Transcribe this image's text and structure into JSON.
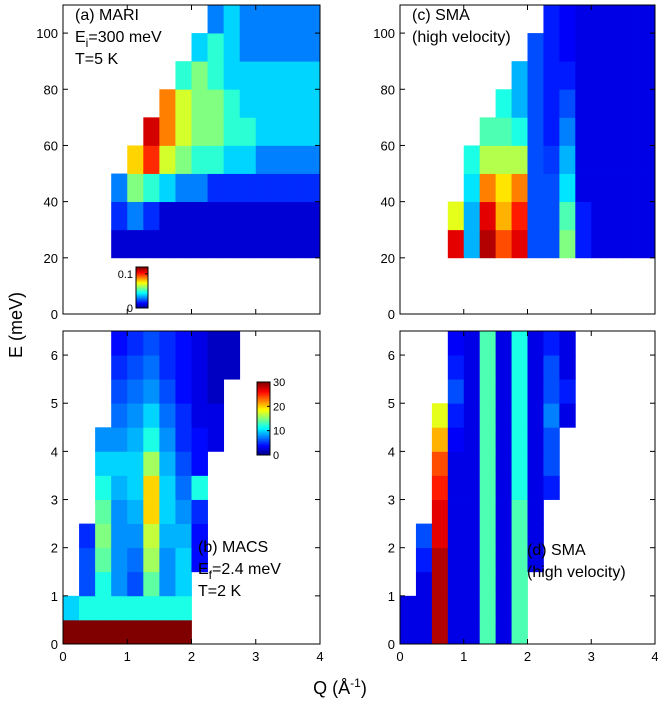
{
  "figure": {
    "ylabel": "E (meV)",
    "xlabel": [
      "Q (Å",
      "-1",
      ")"
    ]
  },
  "chart_data": [
    {
      "type": "heatmap",
      "colormap": "jet",
      "label": [
        "(a) MARI",
        [
          "E",
          "i",
          "=300 meV"
        ],
        "T=5 K"
      ],
      "xlim": [
        0,
        4
      ],
      "xticks": [
        0,
        1,
        2,
        3,
        4
      ],
      "show_xtick_labels": false,
      "ylim": [
        0,
        110
      ],
      "yticks": [
        0,
        20,
        40,
        60,
        80,
        100
      ],
      "clim": [
        0,
        0.12
      ],
      "colorbar": {
        "ticks": [
          0,
          0.1
        ]
      },
      "x_edges": [
        0,
        0.25,
        0.5,
        0.75,
        1,
        1.25,
        1.5,
        1.75,
        2,
        2.25,
        2.5,
        2.75,
        3,
        3.25,
        3.5,
        3.75,
        4
      ],
      "y_edges": [
        20,
        30,
        40,
        50,
        60,
        70,
        80,
        90,
        100,
        110
      ],
      "z": [
        [
          null,
          null,
          null,
          0.01,
          0.01,
          0.01,
          0.01,
          0.01,
          0.01,
          0.01,
          0.01,
          0.01,
          0.01,
          0.01,
          0.01,
          0.01
        ],
        [
          null,
          null,
          null,
          0.02,
          0.03,
          0.02,
          0.01,
          0.01,
          0.01,
          0.01,
          0.01,
          0.01,
          0.01,
          0.01,
          0.01,
          0.01
        ],
        [
          null,
          null,
          null,
          0.03,
          0.06,
          0.05,
          0.04,
          0.03,
          0.03,
          0.02,
          0.02,
          0.02,
          0.02,
          0.02,
          0.02,
          0.02
        ],
        [
          null,
          null,
          null,
          null,
          0.08,
          0.1,
          0.07,
          0.06,
          0.05,
          0.05,
          0.04,
          0.04,
          0.03,
          0.03,
          0.03,
          0.03
        ],
        [
          null,
          null,
          null,
          null,
          null,
          0.11,
          0.09,
          0.07,
          0.06,
          0.06,
          0.05,
          0.05,
          0.04,
          0.04,
          0.04,
          0.04
        ],
        [
          null,
          null,
          null,
          null,
          null,
          null,
          0.09,
          0.07,
          0.06,
          0.06,
          0.05,
          0.04,
          0.04,
          0.04,
          0.04,
          0.04
        ],
        [
          null,
          null,
          null,
          null,
          null,
          null,
          null,
          0.05,
          0.06,
          0.05,
          0.04,
          0.04,
          0.04,
          0.04,
          0.04,
          0.04
        ],
        [
          null,
          null,
          null,
          null,
          null,
          null,
          null,
          null,
          0.04,
          0.05,
          0.04,
          0.03,
          0.03,
          0.03,
          0.03,
          0.03
        ],
        [
          null,
          null,
          null,
          null,
          null,
          null,
          null,
          null,
          null,
          0.03,
          0.04,
          0.03,
          0.03,
          0.03,
          0.03,
          0.03
        ]
      ]
    },
    {
      "type": "heatmap",
      "colormap": "jet",
      "label": [
        "(b) MACS",
        [
          "E",
          "f",
          "=2.4 meV"
        ],
        "T=2 K"
      ],
      "xlim": [
        0,
        4
      ],
      "xticks": [
        0,
        1,
        2,
        3,
        4
      ],
      "show_xtick_labels": true,
      "ylim": [
        0,
        6.5
      ],
      "yticks": [
        0,
        1,
        2,
        3,
        4,
        5,
        6
      ],
      "clim": [
        0,
        30
      ],
      "colorbar": {
        "ticks": [
          0,
          10,
          20,
          30
        ]
      },
      "x_edges": [
        0,
        0.25,
        0.5,
        0.75,
        1,
        1.25,
        1.5,
        1.75,
        2,
        2.25,
        2.5,
        2.75,
        3,
        3.25,
        3.5,
        3.75,
        4
      ],
      "y_edges": [
        0,
        0.5,
        1,
        1.5,
        2,
        2.5,
        3,
        3.5,
        4,
        4.5,
        5,
        5.5,
        6,
        6.5
      ],
      "z": [
        [
          30,
          30,
          30,
          30,
          30,
          30,
          30,
          30,
          null,
          null,
          null,
          null,
          null,
          null,
          null,
          null
        ],
        [
          10,
          12,
          12,
          12,
          12,
          12,
          12,
          12,
          null,
          null,
          null,
          null,
          null,
          null,
          null,
          null
        ],
        [
          null,
          6,
          12,
          8,
          6,
          14,
          8,
          10,
          null,
          null,
          null,
          null,
          null,
          null,
          null,
          null
        ],
        [
          null,
          6,
          14,
          8,
          7,
          16,
          8,
          10,
          4,
          null,
          null,
          null,
          null,
          null,
          null,
          null
        ],
        [
          null,
          5,
          15,
          8,
          8,
          17,
          9,
          9,
          4,
          null,
          null,
          null,
          null,
          null,
          null,
          null
        ],
        [
          null,
          null,
          14,
          8,
          9,
          20,
          10,
          8,
          5,
          null,
          null,
          null,
          null,
          null,
          null,
          null
        ],
        [
          null,
          null,
          12,
          9,
          10,
          20,
          10,
          7,
          12,
          null,
          null,
          null,
          null,
          null,
          null,
          null
        ],
        [
          null,
          null,
          10,
          10,
          10,
          16,
          9,
          6,
          4,
          null,
          null,
          null,
          null,
          null,
          null,
          null
        ],
        [
          null,
          null,
          8,
          8,
          9,
          12,
          8,
          5,
          4,
          3,
          null,
          null,
          null,
          null,
          null,
          null
        ],
        [
          null,
          null,
          null,
          7,
          8,
          10,
          7,
          5,
          3,
          3,
          null,
          null,
          null,
          null,
          null,
          null
        ],
        [
          null,
          null,
          null,
          6,
          7,
          8,
          6,
          4,
          3,
          2,
          null,
          null,
          null,
          null,
          null,
          null
        ],
        [
          null,
          null,
          null,
          5,
          6,
          7,
          5,
          4,
          3,
          2,
          2,
          null,
          null,
          null,
          null,
          null
        ],
        [
          null,
          null,
          null,
          4,
          5,
          6,
          5,
          4,
          3,
          2,
          2,
          null,
          null,
          null,
          null,
          null
        ]
      ]
    },
    {
      "type": "heatmap",
      "colormap": "jet",
      "label": [
        "(c) SMA",
        "(high velocity)"
      ],
      "xlim": [
        0,
        4
      ],
      "xticks": [
        0,
        1,
        2,
        3,
        4
      ],
      "show_xtick_labels": false,
      "ylim": [
        0,
        110
      ],
      "yticks": [
        0,
        20,
        40,
        60,
        80,
        100
      ],
      "clim": [
        0,
        1
      ],
      "x_edges": [
        0,
        0.25,
        0.5,
        0.75,
        1,
        1.25,
        1.5,
        1.75,
        2,
        2.25,
        2.5,
        2.75,
        3,
        3.25,
        3.5,
        3.75,
        4
      ],
      "y_edges": [
        20,
        30,
        40,
        50,
        60,
        70,
        80,
        90,
        100,
        110
      ],
      "z": [
        [
          null,
          null,
          null,
          0.9,
          0.3,
          0.95,
          0.8,
          0.9,
          0.2,
          0.2,
          0.5,
          0.15,
          0.1,
          0.1,
          0.1,
          0.1
        ],
        [
          null,
          null,
          null,
          0.6,
          0.3,
          0.9,
          0.7,
          0.85,
          0.2,
          0.2,
          0.45,
          0.15,
          0.1,
          0.1,
          0.1,
          0.1
        ],
        [
          null,
          null,
          null,
          null,
          0.35,
          0.75,
          0.65,
          0.75,
          0.2,
          0.2,
          0.35,
          0.1,
          0.1,
          0.1,
          0.1,
          0.1
        ],
        [
          null,
          null,
          null,
          null,
          0.4,
          0.55,
          0.55,
          0.55,
          0.2,
          0.18,
          0.3,
          0.1,
          0.1,
          0.1,
          0.1,
          0.1
        ],
        [
          null,
          null,
          null,
          null,
          null,
          0.45,
          0.45,
          0.4,
          0.2,
          0.15,
          0.25,
          0.1,
          0.1,
          0.1,
          0.1,
          0.1
        ],
        [
          null,
          null,
          null,
          null,
          null,
          null,
          0.4,
          0.3,
          0.2,
          0.15,
          0.2,
          0.1,
          0.1,
          0.1,
          0.1,
          0.1
        ],
        [
          null,
          null,
          null,
          null,
          null,
          null,
          null,
          0.3,
          0.2,
          0.15,
          0.15,
          0.1,
          0.1,
          0.1,
          0.1,
          0.1
        ],
        [
          null,
          null,
          null,
          null,
          null,
          null,
          null,
          null,
          0.2,
          0.15,
          0.12,
          0.1,
          0.1,
          0.1,
          0.1,
          0.1
        ],
        [
          null,
          null,
          null,
          null,
          null,
          null,
          null,
          null,
          null,
          0.15,
          0.12,
          0.1,
          0.1,
          0.1,
          0.1,
          0.1
        ]
      ]
    },
    {
      "type": "heatmap",
      "colormap": "jet",
      "label": [
        "(d) SMA",
        "(high velocity)"
      ],
      "xlim": [
        0,
        4
      ],
      "xticks": [
        0,
        1,
        2,
        3,
        4
      ],
      "show_xtick_labels": true,
      "ylim": [
        0,
        6.5
      ],
      "yticks": [
        0,
        1,
        2,
        3,
        4,
        5,
        6
      ],
      "clim": [
        0,
        1
      ],
      "x_edges": [
        0,
        0.25,
        0.5,
        0.75,
        1,
        1.25,
        1.5,
        1.75,
        2,
        2.25,
        2.5,
        2.75,
        3,
        3.25,
        3.5,
        3.75,
        4
      ],
      "y_edges": [
        0,
        0.5,
        1,
        1.5,
        2,
        2.5,
        3,
        3.5,
        4,
        4.5,
        5,
        5.5,
        6,
        6.5
      ],
      "z": [
        [
          0.1,
          0.1,
          0.95,
          0.1,
          0.1,
          0.45,
          0.1,
          0.45,
          null,
          null,
          null,
          null,
          null,
          null,
          null,
          null
        ],
        [
          0.1,
          0.1,
          0.95,
          0.1,
          0.1,
          0.45,
          0.1,
          0.45,
          null,
          null,
          null,
          null,
          null,
          null,
          null,
          null
        ],
        [
          null,
          0.1,
          0.95,
          0.1,
          0.1,
          0.45,
          0.1,
          0.45,
          null,
          null,
          null,
          null,
          null,
          null,
          null,
          null
        ],
        [
          null,
          0.15,
          0.95,
          0.1,
          0.1,
          0.45,
          0.1,
          0.45,
          0.1,
          null,
          null,
          null,
          null,
          null,
          null,
          null
        ],
        [
          null,
          0.2,
          0.9,
          0.1,
          0.1,
          0.45,
          0.1,
          0.45,
          0.1,
          null,
          null,
          null,
          null,
          null,
          null,
          null
        ],
        [
          null,
          null,
          0.9,
          0.1,
          0.1,
          0.45,
          0.1,
          0.45,
          0.1,
          null,
          null,
          null,
          null,
          null,
          null,
          null
        ],
        [
          null,
          null,
          0.85,
          0.1,
          0.1,
          0.45,
          0.1,
          0.4,
          0.1,
          0.15,
          null,
          null,
          null,
          null,
          null,
          null
        ],
        [
          null,
          null,
          0.8,
          0.1,
          0.1,
          0.45,
          0.1,
          0.4,
          0.1,
          0.2,
          null,
          null,
          null,
          null,
          null,
          null
        ],
        [
          null,
          null,
          0.7,
          0.12,
          0.1,
          0.45,
          0.1,
          0.4,
          0.1,
          0.2,
          null,
          null,
          null,
          null,
          null,
          null
        ],
        [
          null,
          null,
          0.6,
          0.15,
          0.1,
          0.45,
          0.1,
          0.4,
          0.1,
          0.25,
          0.1,
          null,
          null,
          null,
          null,
          null
        ],
        [
          null,
          null,
          null,
          0.2,
          0.1,
          0.45,
          0.1,
          0.4,
          0.1,
          0.2,
          0.15,
          null,
          null,
          null,
          null,
          null
        ],
        [
          null,
          null,
          null,
          0.15,
          0.1,
          0.45,
          0.1,
          0.4,
          0.1,
          0.2,
          0.1,
          null,
          null,
          null,
          null,
          null
        ],
        [
          null,
          null,
          null,
          0.12,
          0.1,
          0.45,
          0.1,
          0.4,
          0.1,
          0.15,
          0.1,
          null,
          null,
          null,
          null,
          null
        ]
      ]
    }
  ]
}
